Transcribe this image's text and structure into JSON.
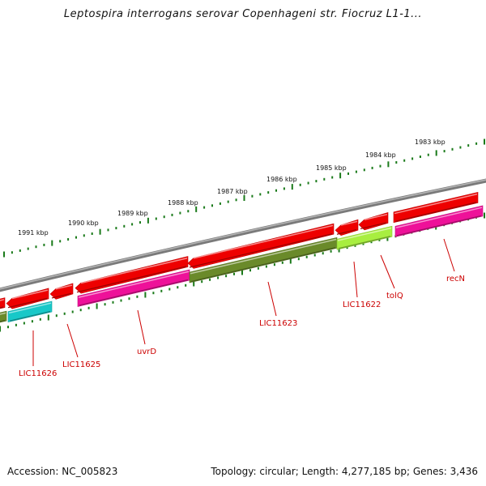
{
  "title": "Leptospira interrogans serovar Copenhageni str. Fiocruz L1-1...",
  "footer": {
    "accession": "Accession: NC_005823",
    "topology": "Topology: circular; Length: 4,277,185 bp; Genes: 3,436"
  },
  "scale_labels": [
    "1991 kbp",
    "1990 kbp",
    "1989 kbp",
    "1988 kbp",
    "1987 kbp",
    "1986 kbp",
    "1985 kbp",
    "1984 kbp",
    "1983 kbp"
  ],
  "gene_labels": [
    "LIC11626",
    "LIC11625",
    "uvrD",
    "LIC11623",
    "LIC11622",
    "tolQ",
    "recN"
  ],
  "colors": {
    "backbone": "#7a7a7a",
    "tick": "#1a7a1a",
    "forward_gene": "#ee0000",
    "cds_magenta": "#ee1199",
    "cds_olive": "#6a8a2a",
    "cds_cyan": "#18c8c8",
    "cds_lime": "#a8ee40",
    "label": "#cc0000"
  }
}
